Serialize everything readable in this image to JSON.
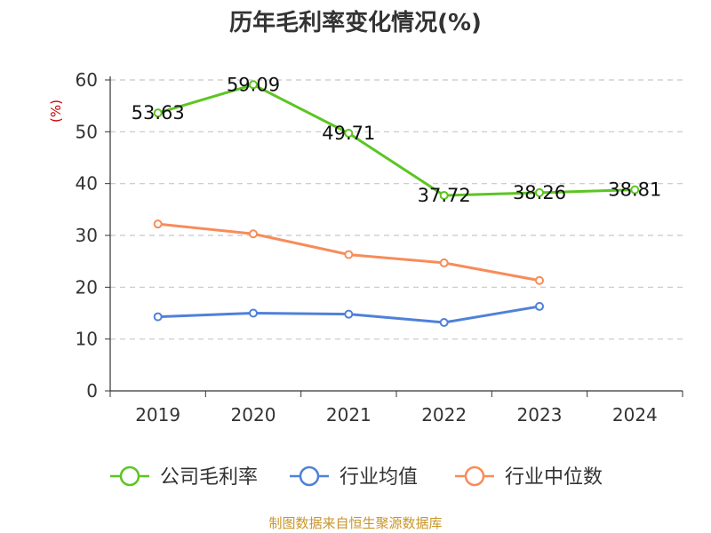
{
  "chart_data": {
    "type": "line",
    "title": "历年毛利率变化情况(%)",
    "ylabel": "(%)",
    "xlabel": "",
    "categories": [
      "2019",
      "2020",
      "2021",
      "2022",
      "2023",
      "2024"
    ],
    "ylim": [
      0,
      60
    ],
    "yticks": [
      0,
      10,
      20,
      30,
      40,
      50,
      60
    ],
    "grid": true,
    "legend_position": "bottom",
    "series": [
      {
        "name": "公司毛利率",
        "color": "#5cc522",
        "values": [
          53.63,
          59.09,
          49.71,
          37.72,
          38.26,
          38.81
        ],
        "labels": [
          "53.63",
          "59.09",
          "49.71",
          "37.72",
          "38.26",
          "38.81"
        ]
      },
      {
        "name": "行业均值",
        "color": "#4f81d9",
        "values": [
          14.3,
          15.0,
          14.8,
          13.2,
          16.3,
          null
        ]
      },
      {
        "name": "行业中位数",
        "color": "#f78c5a",
        "values": [
          32.2,
          30.3,
          26.3,
          24.7,
          21.3,
          null
        ]
      }
    ]
  },
  "footer": {
    "source": "制图数据来自恒生聚源数据库"
  }
}
